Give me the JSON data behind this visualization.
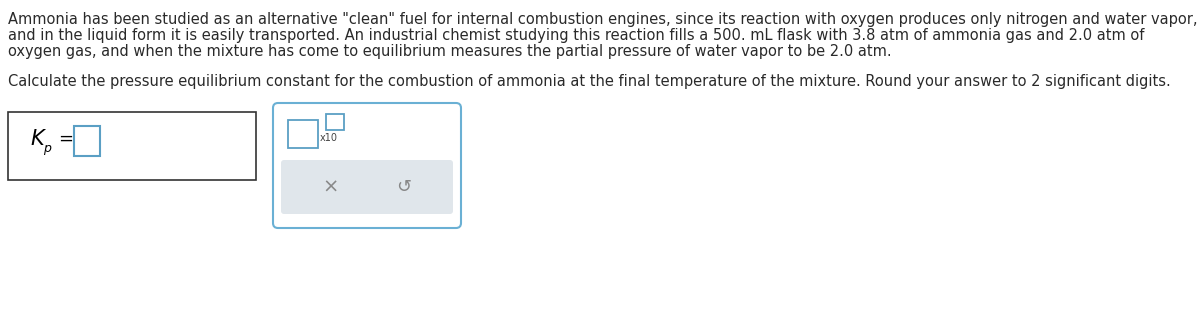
{
  "line1": "Ammonia has been studied as an alternative \"clean\" fuel for internal combustion engines, since its reaction with oxygen produces only nitrogen and water vapor,",
  "line2": "and in the liquid form it is easily transported. An industrial chemist studying this reaction fills a 500. mL flask with 3.8 atm of ammonia gas and 2.0 atm of",
  "line3": "oxygen gas, and when the mixture has come to equilibrium measures the partial pressure of water vapor to be 2.0 atm.",
  "line4": "Calculate the pressure equilibrium constant for the combustion of ammonia at the final temperature of the mixture. Round your answer to 2 significant digits.",
  "bg_color": "#ffffff",
  "text_color": "#2a2a2a",
  "font_size": 10.5,
  "box1_edge": "#333333",
  "box2_edge": "#6ab0d4",
  "input_edge": "#5a9fc4",
  "gray_fill": "#e0e6eb",
  "btn_color": "#888888"
}
